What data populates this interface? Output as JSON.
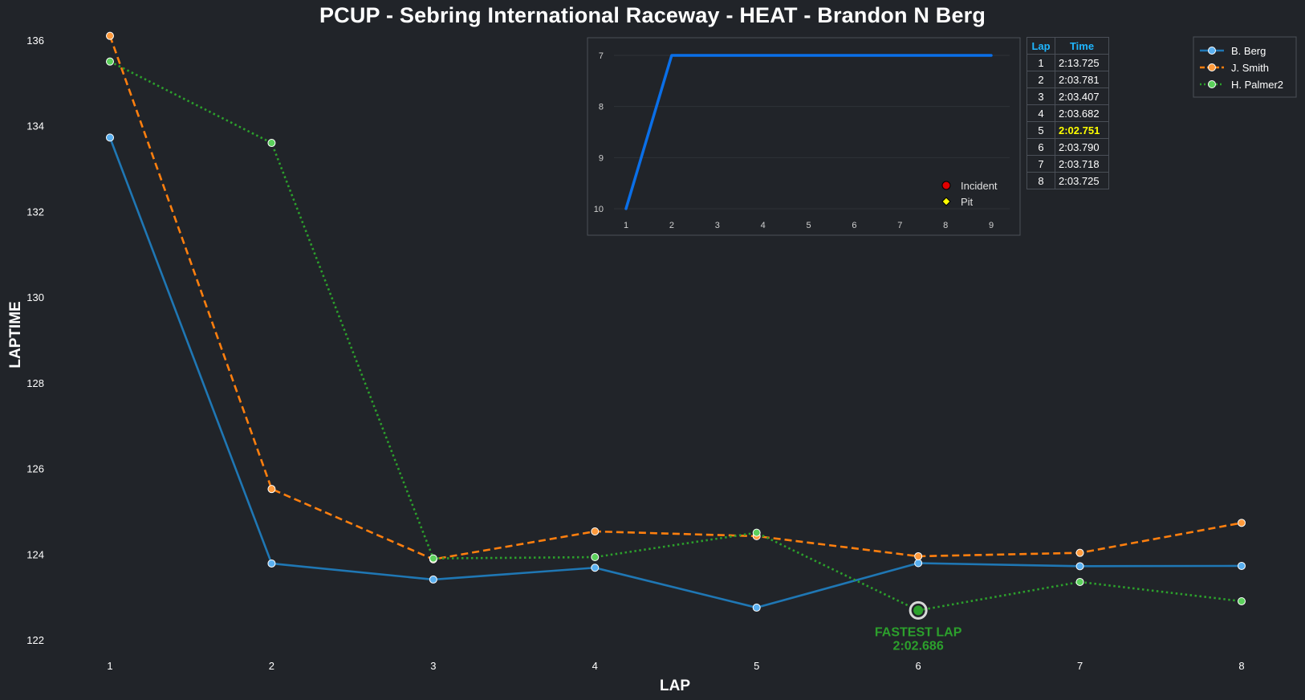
{
  "title": "PCUP - Sebring International Raceway - HEAT - Brandon N Berg",
  "chart_data": [
    {
      "type": "line",
      "title": "PCUP - Sebring International Raceway - HEAT - Brandon N Berg",
      "xlabel": "LAP",
      "ylabel": "LAPTIME",
      "x": [
        1,
        2,
        3,
        4,
        5,
        6,
        7,
        8
      ],
      "xlim": [
        0.25,
        8.35
      ],
      "ylim": [
        121.7,
        136.2
      ],
      "yticks": [
        122,
        124,
        126,
        128,
        130,
        132,
        134,
        136
      ],
      "grid": false,
      "legend_position": "top-right",
      "series": [
        {
          "name": "B. Berg",
          "color": "#1f77b4",
          "marker_fill": "#5ab0f0",
          "dash": "solid",
          "values": [
            133.725,
            123.781,
            123.407,
            123.682,
            122.751,
            123.79,
            123.718,
            123.725
          ]
        },
        {
          "name": "J. Smith",
          "color": "#ff7f0e",
          "marker_fill": "#ff9a3c",
          "dash": "dashed",
          "values": [
            136.1,
            125.52,
            123.88,
            124.53,
            124.42,
            123.95,
            124.03,
            124.73
          ]
        },
        {
          "name": "H. Palmer2",
          "color": "#2ca02c",
          "marker_fill": "#5cd15c",
          "dash": "dotted",
          "values": [
            135.5,
            133.6,
            123.9,
            123.93,
            124.5,
            122.686,
            123.35,
            122.9
          ]
        }
      ],
      "annotations": [
        {
          "series": "H. Palmer2",
          "x": 6,
          "y": 122.686,
          "text_line1": "FASTEST LAP",
          "text_line2": "2:02.686",
          "color": "#2ca02c"
        }
      ]
    },
    {
      "type": "line",
      "title": "",
      "xlabel": "",
      "ylabel": "",
      "x": [
        1,
        2,
        3,
        4,
        5,
        6,
        7,
        8,
        9
      ],
      "xticks": [
        1,
        2,
        3,
        4,
        5,
        6,
        7,
        8,
        9
      ],
      "yticks": [
        7,
        8,
        9,
        10
      ],
      "ylim_inverted": [
        10,
        7
      ],
      "grid": true,
      "series": [
        {
          "name": "",
          "color": "#0a6fe8",
          "values": [
            10,
            7,
            7,
            7,
            7,
            7,
            7,
            7,
            7
          ]
        }
      ],
      "legend": [
        {
          "label": "Incident",
          "marker": "circle",
          "color": "#e00000"
        },
        {
          "label": "Pit",
          "marker": "diamond",
          "color": "#ffff00"
        }
      ],
      "legend_position": "lower-right"
    }
  ],
  "lap_table": {
    "headers": [
      "Lap",
      "Time"
    ],
    "rows": [
      {
        "lap": "1",
        "time": "2:13.725",
        "best": false
      },
      {
        "lap": "2",
        "time": "2:03.781",
        "best": false
      },
      {
        "lap": "3",
        "time": "2:03.407",
        "best": false
      },
      {
        "lap": "4",
        "time": "2:03.682",
        "best": false
      },
      {
        "lap": "5",
        "time": "2:02.751",
        "best": true
      },
      {
        "lap": "6",
        "time": "2:03.790",
        "best": false
      },
      {
        "lap": "7",
        "time": "2:03.718",
        "best": false
      },
      {
        "lap": "8",
        "time": "2:03.725",
        "best": false
      }
    ]
  }
}
